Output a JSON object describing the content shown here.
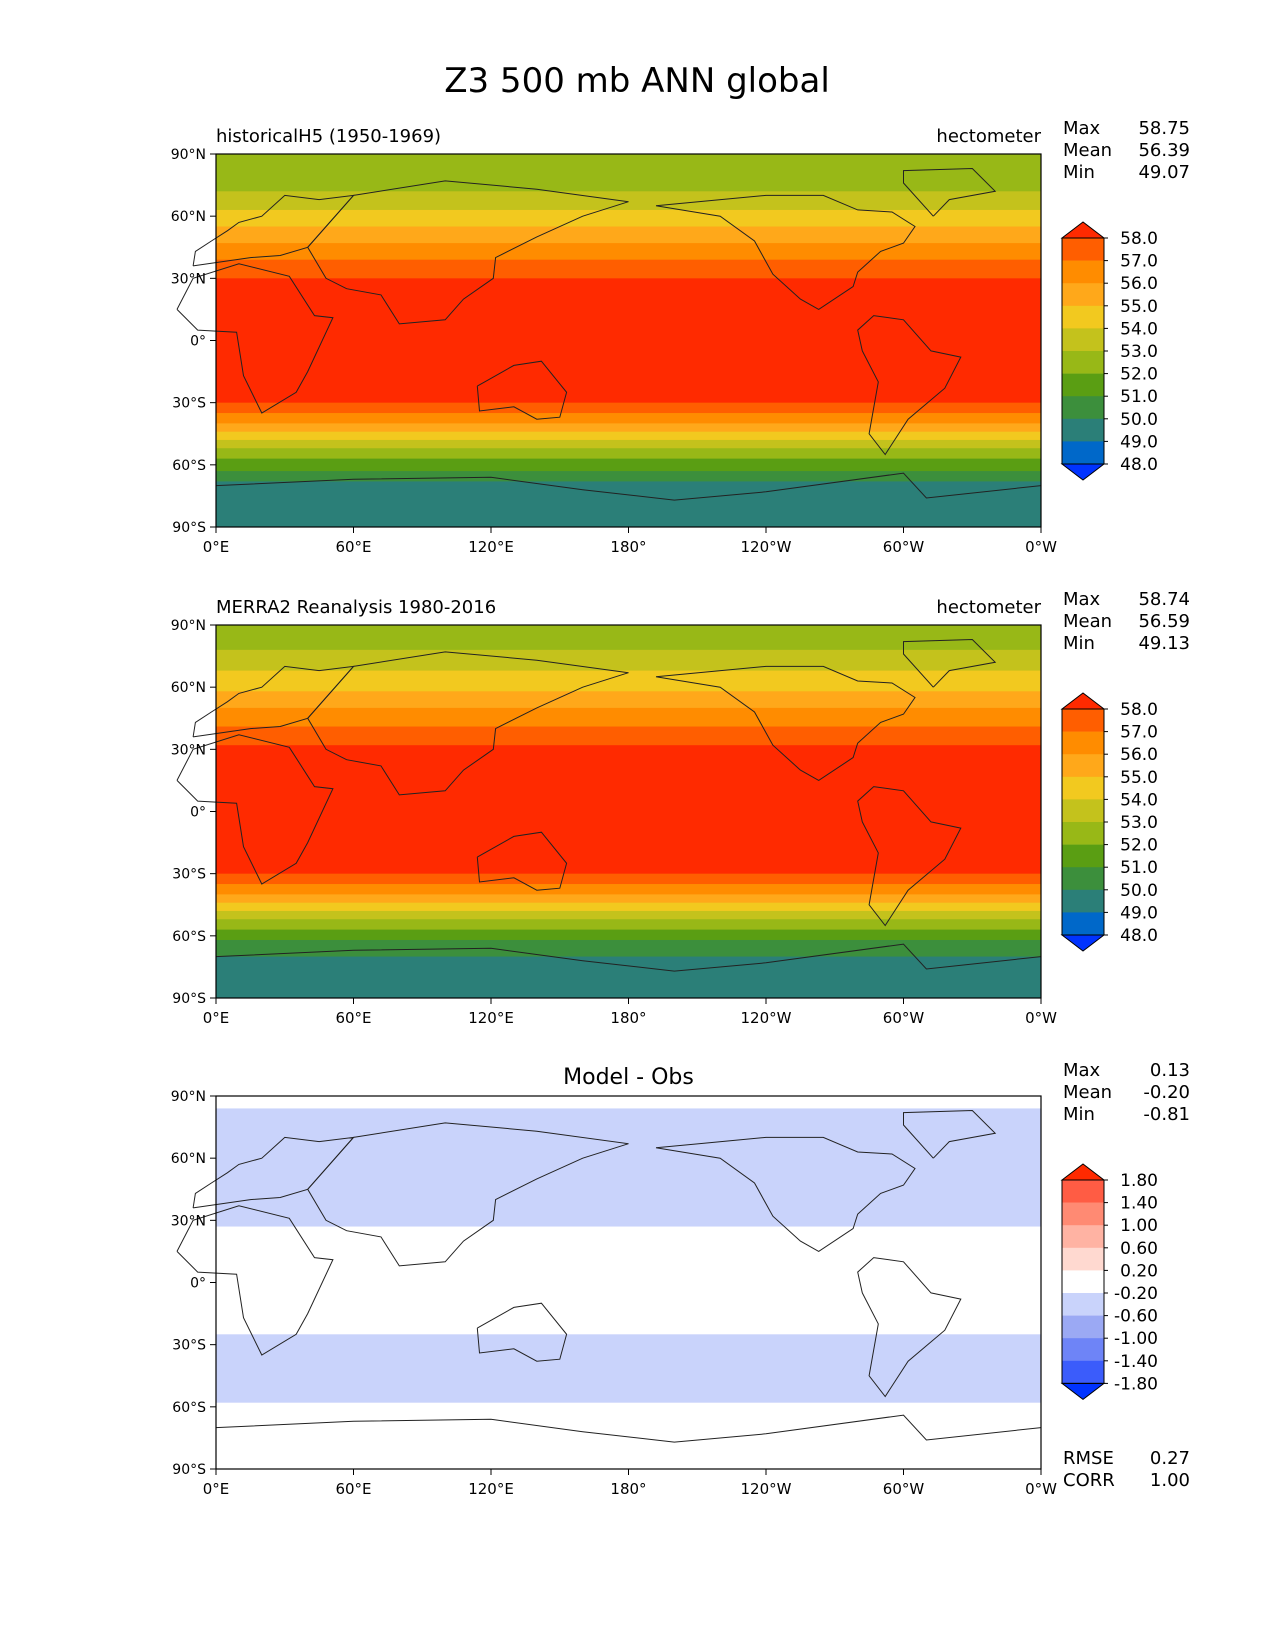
{
  "title": "Z3 500 mb ANN global",
  "chart_data": [
    {
      "type": "heatmap",
      "panel": "test",
      "left_title": "historicalH5 (1950-1969)",
      "center_title": "",
      "units": "hectometer",
      "stats": [
        {
          "label": "Max",
          "value": "58.75"
        },
        {
          "label": "Mean",
          "value": "56.39"
        },
        {
          "label": "Min",
          "value": "49.07"
        }
      ],
      "xticks": [
        "0°E",
        "60°E",
        "120°E",
        "180°",
        "120°W",
        "60°W",
        "0°W"
      ],
      "yticks": [
        "90°N",
        "60°N",
        "30°N",
        "0°",
        "30°S",
        "60°S",
        "90°S"
      ],
      "xlim": [
        0,
        360
      ],
      "ylim": [
        -90,
        90
      ],
      "colorbar_levels": [
        "58.0",
        "57.0",
        "56.0",
        "55.0",
        "54.0",
        "53.0",
        "52.0",
        "51.0",
        "50.0",
        "49.0",
        "48.0"
      ],
      "colorbar_colors": [
        "#ff2a00",
        "#ff5e00",
        "#ff8c00",
        "#ffa81a",
        "#f2c91f",
        "#c4c21c",
        "#98b817",
        "#5a9e13",
        "#3c8f3c",
        "#2b7f78",
        "#0068c9",
        "#0033ff"
      ],
      "bands": [
        {
          "lat_north": 90,
          "lat_south": 72,
          "value": 52.5
        },
        {
          "lat_north": 72,
          "lat_south": 63,
          "value": 53.5
        },
        {
          "lat_north": 63,
          "lat_south": 55,
          "value": 54.5
        },
        {
          "lat_north": 55,
          "lat_south": 47,
          "value": 55.5
        },
        {
          "lat_north": 47,
          "lat_south": 39,
          "value": 56.5
        },
        {
          "lat_north": 39,
          "lat_south": 30,
          "value": 57.5
        },
        {
          "lat_north": 30,
          "lat_south": -30,
          "value": 58.4
        },
        {
          "lat_north": -30,
          "lat_south": -35,
          "value": 57.5
        },
        {
          "lat_north": -35,
          "lat_south": -40,
          "value": 56.5
        },
        {
          "lat_north": -40,
          "lat_south": -44,
          "value": 55.5
        },
        {
          "lat_north": -44,
          "lat_south": -48,
          "value": 54.5
        },
        {
          "lat_north": -48,
          "lat_south": -52,
          "value": 53.5
        },
        {
          "lat_north": -52,
          "lat_south": -57,
          "value": 52.5
        },
        {
          "lat_north": -57,
          "lat_south": -63,
          "value": 51.5
        },
        {
          "lat_north": -63,
          "lat_south": -68,
          "value": 50.5
        },
        {
          "lat_north": -68,
          "lat_south": -90,
          "value": 49.5
        }
      ]
    },
    {
      "type": "heatmap",
      "panel": "reference",
      "left_title": "MERRA2 Reanalysis 1980-2016",
      "center_title": "",
      "units": "hectometer",
      "stats": [
        {
          "label": "Max",
          "value": "58.74"
        },
        {
          "label": "Mean",
          "value": "56.59"
        },
        {
          "label": "Min",
          "value": "49.13"
        }
      ],
      "xticks": [
        "0°E",
        "60°E",
        "120°E",
        "180°",
        "120°W",
        "60°W",
        "0°W"
      ],
      "yticks": [
        "90°N",
        "60°N",
        "30°N",
        "0°",
        "30°S",
        "60°S",
        "90°S"
      ],
      "xlim": [
        0,
        360
      ],
      "ylim": [
        -90,
        90
      ],
      "colorbar_levels": [
        "58.0",
        "57.0",
        "56.0",
        "55.0",
        "54.0",
        "53.0",
        "52.0",
        "51.0",
        "50.0",
        "49.0",
        "48.0"
      ],
      "colorbar_colors": [
        "#ff2a00",
        "#ff5e00",
        "#ff8c00",
        "#ffa81a",
        "#f2c91f",
        "#c4c21c",
        "#98b817",
        "#5a9e13",
        "#3c8f3c",
        "#2b7f78",
        "#0068c9",
        "#0033ff"
      ],
      "bands": [
        {
          "lat_north": 90,
          "lat_south": 78,
          "value": 52.5
        },
        {
          "lat_north": 78,
          "lat_south": 68,
          "value": 53.5
        },
        {
          "lat_north": 68,
          "lat_south": 58,
          "value": 54.5
        },
        {
          "lat_north": 58,
          "lat_south": 50,
          "value": 55.5
        },
        {
          "lat_north": 50,
          "lat_south": 41,
          "value": 56.5
        },
        {
          "lat_north": 41,
          "lat_south": 32,
          "value": 57.5
        },
        {
          "lat_north": 32,
          "lat_south": -30,
          "value": 58.4
        },
        {
          "lat_north": -30,
          "lat_south": -35,
          "value": 57.5
        },
        {
          "lat_north": -35,
          "lat_south": -40,
          "value": 56.5
        },
        {
          "lat_north": -40,
          "lat_south": -44,
          "value": 55.5
        },
        {
          "lat_north": -44,
          "lat_south": -48,
          "value": 54.5
        },
        {
          "lat_north": -48,
          "lat_south": -52,
          "value": 53.5
        },
        {
          "lat_north": -52,
          "lat_south": -57,
          "value": 52.5
        },
        {
          "lat_north": -57,
          "lat_south": -62,
          "value": 51.5
        },
        {
          "lat_north": -62,
          "lat_south": -70,
          "value": 50.5
        },
        {
          "lat_north": -70,
          "lat_south": -90,
          "value": 49.5
        }
      ]
    },
    {
      "type": "heatmap",
      "panel": "difference",
      "left_title": "",
      "center_title": "Model - Obs",
      "units": "",
      "stats": [
        {
          "label": "Max",
          "value": "0.13"
        },
        {
          "label": "Mean",
          "value": "-0.20"
        },
        {
          "label": "Min",
          "value": "-0.81"
        }
      ],
      "extra_stats": [
        {
          "label": "RMSE",
          "value": "0.27"
        },
        {
          "label": "CORR",
          "value": "1.00"
        }
      ],
      "xticks": [
        "0°E",
        "60°E",
        "120°E",
        "180°",
        "120°W",
        "60°W",
        "0°W"
      ],
      "yticks": [
        "90°N",
        "60°N",
        "30°N",
        "0°",
        "30°S",
        "60°S",
        "90°S"
      ],
      "xlim": [
        0,
        360
      ],
      "ylim": [
        -90,
        90
      ],
      "colorbar_levels": [
        "1.80",
        "1.40",
        "1.00",
        "0.60",
        "0.20",
        "-0.20",
        "-0.60",
        "-1.00",
        "-1.40",
        "-1.80"
      ],
      "colorbar_colors": [
        "#ff2a00",
        "#ff5c44",
        "#ff8a73",
        "#ffb3a3",
        "#ffd9d0",
        "#ffffff",
        "#c9d3fb",
        "#9ba9f4",
        "#6e84f7",
        "#3b5cfb",
        "#0033ff"
      ],
      "bands": [
        {
          "lat_north": 90,
          "lat_south": 84,
          "value": 0.0
        },
        {
          "lat_north": 84,
          "lat_south": 27,
          "value": -0.4
        },
        {
          "lat_north": 27,
          "lat_south": -25,
          "value": 0.0
        },
        {
          "lat_north": -25,
          "lat_south": -58,
          "value": -0.4
        },
        {
          "lat_north": -58,
          "lat_south": -90,
          "value": 0.0
        }
      ]
    }
  ]
}
